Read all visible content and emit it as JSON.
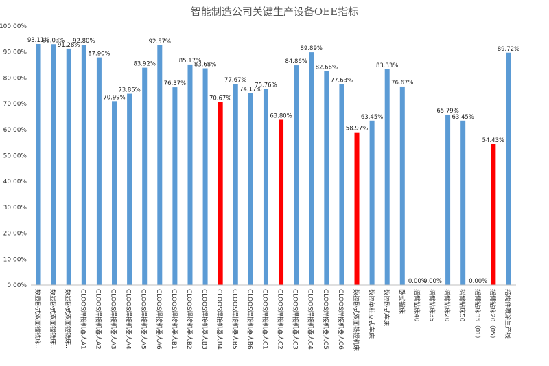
{
  "chart_data": {
    "type": "bar",
    "title": "智能制造公司关键生产设备OEE指标",
    "xlabel": "",
    "ylabel": "",
    "ylim": [
      0,
      100
    ],
    "yticks": [
      "0.00%",
      "10.00%",
      "20.00%",
      "30.00%",
      "40.00%",
      "50.00%",
      "60.00%",
      "70.00%",
      "80.00%",
      "90.00%",
      "100.00%"
    ],
    "grid": false,
    "categories": [
      "数显卧式双面镗铣床…",
      "数显卧式双面镗铣床…",
      "数显卧式双面镗铣床…",
      "CLOOS焊接机器人A1",
      "CLOOS焊接机器人A2",
      "CLOOS焊接机器人A3",
      "CLOOS焊接机器人A4",
      "CLOOS焊接机器人A5",
      "CLOOS焊接机器人A6",
      "CLOOS焊接机器人B1",
      "CLOOS焊接机器人B2",
      "CLOOS焊接机器人B3",
      "CLOOS焊接机器人B4",
      "CLOOS焊接机器人B5",
      "CLOOS焊接机器人B6",
      "CLOOS焊接机器人C1",
      "CLOOS焊接机器人C2",
      "CLOOS焊接机器人C3",
      "CLOOS焊接机器人C4",
      "CLOOS焊接机器人C5",
      "CLOOS焊接机器人C6",
      "数控卧式双面铣镗机床…",
      "数控单柱立式车床",
      "数控卧式车床",
      "卧式镗床",
      "摇臂钻床40",
      "摇臂钻床35",
      "摇臂钻床20",
      "摇臂钻床50",
      "摇臂钻床35（01）",
      "摇臂钻床20（05）",
      "结构件喷涂生产线"
    ],
    "values": [
      93.11,
      93.03,
      91.28,
      92.8,
      87.9,
      70.99,
      73.85,
      83.92,
      92.57,
      76.37,
      85.17,
      83.68,
      70.67,
      77.67,
      74.17,
      75.76,
      63.8,
      84.86,
      89.89,
      82.66,
      77.63,
      58.97,
      63.45,
      83.33,
      76.67,
      0.0,
      0.0,
      65.79,
      63.45,
      0.0,
      54.43,
      89.72
    ],
    "data_labels": [
      "93.11%",
      "93.03%",
      "91.28%",
      "92.80%",
      "87.90%",
      "70.99%",
      "73.85%",
      "83.92%",
      "92.57%",
      "76.37%",
      "85.17%",
      "83.68%",
      "70.67%",
      "77.67%",
      "74.17%",
      "75.76%",
      "63.80%",
      "84.86%",
      "89.89%",
      "82.66%",
      "77.63%",
      "58.97%",
      "63.45%",
      "83.33%",
      "76.67%",
      "0.00%",
      "0.00%",
      "65.79%",
      "63.45%",
      "0.00%",
      "54.43%",
      "89.72%"
    ],
    "highlighted": [
      12,
      16,
      21,
      30
    ],
    "colors": {
      "bar": "#5b9bd5",
      "highlight": "#ff0000",
      "axis": "#bfbfbf"
    }
  }
}
